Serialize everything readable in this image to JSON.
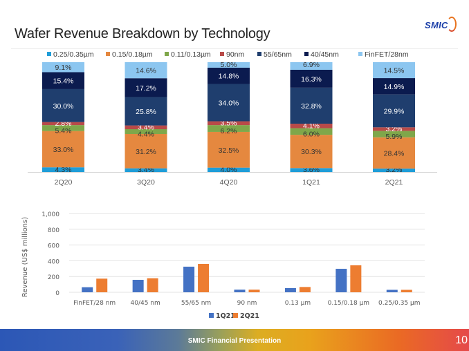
{
  "header": {
    "title": "Wafer Revenue Breakdown by Technology",
    "logo_text": "SMIC"
  },
  "footer": {
    "text": "SMIC Financial Presentation",
    "page_number": "10"
  },
  "chart_data": [
    {
      "type": "bar",
      "stacked": true,
      "percent": true,
      "title": "",
      "categories": [
        "2Q20",
        "3Q20",
        "4Q20",
        "1Q21",
        "2Q21"
      ],
      "legend_position": "top",
      "series": [
        {
          "name": "0.25/0.35µm",
          "color": "#1f9dd8",
          "label_color": "#333333",
          "values": [
            4.3,
            3.4,
            4.0,
            3.6,
            3.2
          ]
        },
        {
          "name": "0.15/0.18µm",
          "color": "#e5883f",
          "label_color": "#333333",
          "values": [
            33.0,
            31.2,
            32.5,
            30.3,
            28.4
          ]
        },
        {
          "name": "0.11/0.13µm",
          "color": "#7fa74a",
          "label_color": "#333333",
          "values": [
            5.4,
            4.4,
            6.2,
            6.0,
            5.9
          ]
        },
        {
          "name": "90nm",
          "color": "#b84a48",
          "label_color": "#ffffff",
          "values": [
            2.8,
            3.4,
            3.5,
            4.1,
            3.2
          ]
        },
        {
          "name": "55/65nm",
          "color": "#1f3e6e",
          "label_color": "#ffffff",
          "values": [
            30.0,
            25.8,
            34.0,
            32.8,
            29.9
          ]
        },
        {
          "name": "40/45nm",
          "color": "#0b1b4f",
          "label_color": "#ffffff",
          "values": [
            15.4,
            17.2,
            14.8,
            16.3,
            14.9
          ]
        },
        {
          "name": "FinFET/28nm",
          "color": "#8cc6f0",
          "label_color": "#333333",
          "values": [
            9.1,
            14.6,
            5.0,
            6.9,
            14.5
          ]
        }
      ],
      "labels": [
        [
          "4.3%",
          "33.0%",
          "5.4%",
          "2.8%",
          "30.0%",
          "15.4%",
          "9.1%"
        ],
        [
          "3.4%",
          "31.2%",
          "4.4%",
          "3.4%",
          "25.8%",
          "17.2%",
          "14.6%"
        ],
        [
          "4.0%",
          "32.5%",
          "6.2%",
          "3.5%",
          "34.0%",
          "14.8%",
          "5.0%"
        ],
        [
          "3.6%",
          "30.3%",
          "6.0%",
          "4.1%",
          "32.8%",
          "16.3%",
          "6.9%"
        ],
        [
          "3.2%",
          "28.4%",
          "5.9%",
          "3.2%",
          "29.9%",
          "14.9%",
          "14.5%"
        ]
      ]
    },
    {
      "type": "bar",
      "stacked": false,
      "title": "",
      "xlabel": "",
      "ylabel": "Revenue (US$  millions)",
      "ylim": [
        0,
        1000
      ],
      "yticks": [
        0,
        200,
        400,
        600,
        800,
        1000
      ],
      "ytick_labels": [
        "0",
        "200",
        "400",
        "600",
        "800",
        "1,000"
      ],
      "grid": true,
      "legend_position": "bottom",
      "categories": [
        "FinFET/28 nm",
        "40/45 nm",
        "55/65 nm",
        "90 nm",
        "0.13 µm",
        "0.15/0.18 µm",
        "0.25/0.35 µm"
      ],
      "series": [
        {
          "name": "1Q21",
          "color": "#4472c4",
          "values": [
            64,
            158,
            325,
            33,
            53,
            298,
            31
          ]
        },
        {
          "name": "2Q21",
          "color": "#ed7d31",
          "values": [
            173,
            178,
            360,
            33,
            67,
            342,
            31
          ]
        }
      ]
    }
  ]
}
